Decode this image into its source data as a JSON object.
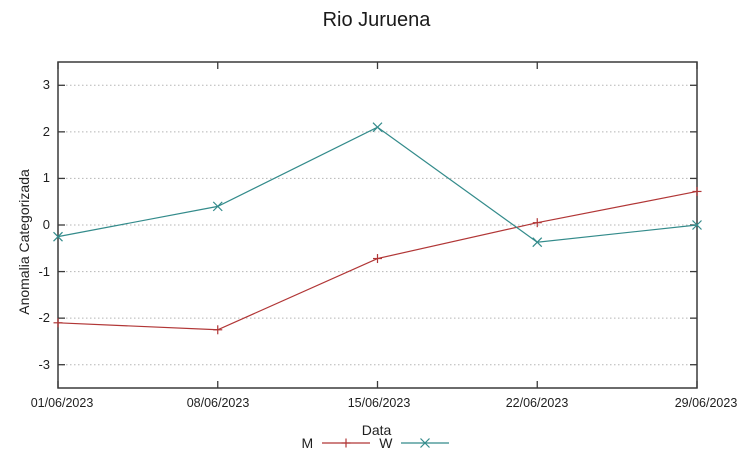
{
  "title": "Rio Juruena",
  "chart_data": {
    "type": "line",
    "title": "Rio Juruena",
    "xlabel": "Data",
    "ylabel": "Anomalia Categorizada",
    "categories": [
      "01/06/2023",
      "08/06/2023",
      "15/06/2023",
      "22/06/2023",
      "29/06/2023"
    ],
    "series": [
      {
        "name": "M",
        "color": "#b13636",
        "marker": "plus",
        "values": [
          -2.1,
          -2.25,
          -0.72,
          0.05,
          0.72
        ]
      },
      {
        "name": "W",
        "color": "#338b8b",
        "marker": "cross",
        "values": [
          -0.25,
          0.4,
          2.1,
          -0.37,
          0.0
        ]
      }
    ],
    "ylim": [
      -3.5,
      3.5
    ],
    "yticks": [
      3,
      2,
      1,
      0,
      -1,
      -2,
      -3
    ],
    "grid": true,
    "gridline_style": "dotted",
    "legend_position": "bottom",
    "colors": {
      "border": "#3a3a3a",
      "gridline": "#b5b5b5",
      "text": "#1f1f1f"
    }
  }
}
